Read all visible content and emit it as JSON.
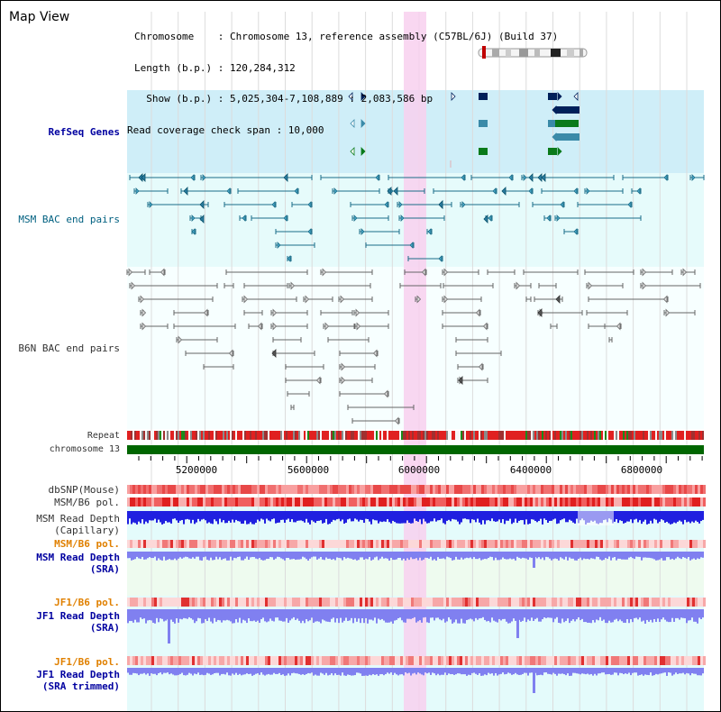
{
  "window": {
    "title": "Map View"
  },
  "header": {
    "lines": [
      "Chromosome    : Chromosome 13, reference assembly (C57BL/6J) (Build 37)",
      "Length (b.p.) : 120,284,312",
      "  Show (b.p.) : 5,025,304-7,108,889 : 2,083,586 bp",
      "Read coverage check span : 10,000"
    ]
  },
  "tracks": {
    "refseq": "RefSeq Genes",
    "msm_bac": "MSM BAC end pairs",
    "b6n_bac": "B6N BAC end pairs",
    "repeat": "Repeat",
    "chromosome": "chromosome 13",
    "dbsnp": "dbSNP(Mouse)",
    "msm_b6_pol_1": "MSM/B6 pol.",
    "msm_read_depth_cap_1": "MSM Read Depth",
    "msm_read_depth_cap_2": "(Capillary)",
    "msm_b6_pol_2": "MSM/B6 pol.",
    "msm_read_depth_sra_1": "MSM Read Depth",
    "msm_read_depth_sra_2": "(SRA)",
    "jf1_b6_pol_1": "JF1/B6 pol.",
    "jf1_read_depth_sra_1": "JF1 Read Depth",
    "jf1_read_depth_sra_2": "(SRA)",
    "jf1_b6_pol_2": "JF1/B6 pol.",
    "jf1_read_depth_trim_1": "JF1 Read Depth",
    "jf1_read_depth_trim_2": "(SRA trimmed)"
  },
  "axis": {
    "ticks": [
      "5200000",
      "5600000",
      "6000000",
      "6400000",
      "6800000"
    ]
  },
  "colors": {
    "refseq_bg": "#cfeef8",
    "bac_bg": "#e6fbfb",
    "highlight": "#f8d0ee",
    "chromosome": "#006600",
    "gene_navy": "#00205a",
    "gene_teal": "#3a8aa8",
    "gene_green": "#0a7a1a",
    "depth_blue": "#2020e0",
    "depth_light": "#8080f0"
  }
}
